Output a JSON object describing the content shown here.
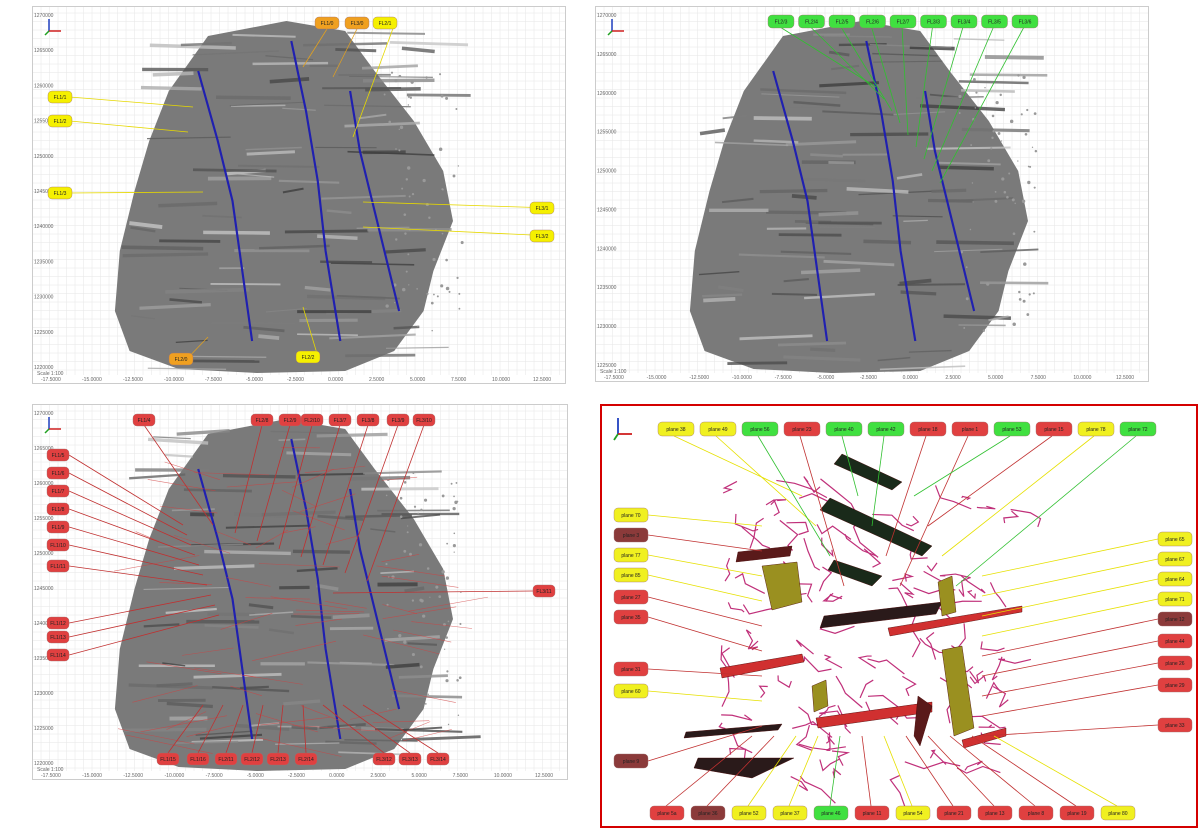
{
  "panels": [
    {
      "id": "p1",
      "y_ticks": [
        "1270000",
        "1265000",
        "1260000",
        "1255000",
        "1250000",
        "1245000",
        "1240000",
        "1235000",
        "1230000",
        "1225000",
        "1220000"
      ],
      "x_ticks": [
        "-17.5000",
        "-15.0000",
        "-12.5000",
        "-10.0000",
        "-7.5000",
        "-5.0000",
        "-2.5000",
        "0.0000",
        "2.5000",
        "5.0000",
        "7.5000",
        "10.0000",
        "12.5000"
      ],
      "scale_text": "Scale 1:100",
      "yellow_labels": [
        "FL1/1",
        "FL1/2",
        "FL1/3",
        "FL2/1",
        "FL3/1",
        "FL3/2",
        "FL2/2"
      ],
      "orange_labels": [
        "FL1/0",
        "FL2/0",
        "FL3/0"
      ]
    },
    {
      "id": "p2",
      "y_ticks": [
        "1270000",
        "1265000",
        "1260000",
        "1255000",
        "1250000",
        "1245000",
        "1240000",
        "1235000",
        "1230000",
        "1225000"
      ],
      "x_ticks": [
        "-17.5000",
        "-15.0000",
        "-12.5000",
        "-10.0000",
        "-7.5000",
        "-5.0000",
        "-2.5000",
        "0.0000",
        "2.5000",
        "5.0000",
        "7.5000",
        "10.0000",
        "12.5000"
      ],
      "scale_text": "Scale 1:100",
      "green_labels": [
        "FL2/3",
        "FL2/4",
        "FL2/5",
        "FL2/6",
        "FL2/7",
        "FL3/3",
        "FL3/4",
        "FL3/5",
        "FL3/6"
      ]
    },
    {
      "id": "p3",
      "y_ticks": [
        "1270000",
        "1265000",
        "1260000",
        "1255000",
        "1250000",
        "1245000",
        "1240000",
        "1235000",
        "1230000",
        "1225000",
        "1220000"
      ],
      "x_ticks": [
        "-17.5000",
        "-15.0000",
        "-12.5000",
        "-10.0000",
        "-7.5000",
        "-5.0000",
        "-2.5000",
        "0.0000",
        "2.5000",
        "5.0000",
        "7.5000",
        "10.0000",
        "12.5000"
      ],
      "scale_text": "Scale 1:100",
      "red_labels_top": [
        "FL1/4",
        "FL2/8",
        "FL2/9",
        "FL2/10",
        "FL3/7",
        "FL3/8",
        "FL3/9",
        "FL3/10"
      ],
      "red_labels_left": [
        "FL1/5",
        "FL1/6",
        "FL1/7",
        "FL1/8",
        "FL1/9",
        "FL1/10",
        "FL1/11",
        "FL1/12",
        "FL1/13",
        "FL1/14"
      ],
      "red_labels_right": [
        "FL3/11"
      ],
      "red_labels_bottom": [
        "FL1/15",
        "FL1/16",
        "FL2/11",
        "FL2/12",
        "FL2/13",
        "FL2/14",
        "FL3/12",
        "FL3/13",
        "FL3/14"
      ]
    },
    {
      "id": "p4",
      "top_labels": [
        {
          "t": "plane 38",
          "c": "#f0f020"
        },
        {
          "t": "plane 49",
          "c": "#f0f020"
        },
        {
          "t": "plane 56",
          "c": "#40e040"
        },
        {
          "t": "plane 23",
          "c": "#e04040"
        },
        {
          "t": "plane 40",
          "c": "#40e040"
        },
        {
          "t": "plane 42",
          "c": "#40e040"
        },
        {
          "t": "plane 18",
          "c": "#e04040"
        },
        {
          "t": "plane 1",
          "c": "#e04040"
        },
        {
          "t": "plane 53",
          "c": "#40e040"
        },
        {
          "t": "plane 15",
          "c": "#e04040"
        },
        {
          "t": "plane 78",
          "c": "#f0f020"
        },
        {
          "t": "plane 72",
          "c": "#40e040"
        }
      ],
      "left_labels": [
        {
          "t": "plane 70",
          "c": "#f0f020"
        },
        {
          "t": "plane 3",
          "c": "#8b3a3a"
        },
        {
          "t": "plane 77",
          "c": "#f0f020"
        },
        {
          "t": "plane 85",
          "c": "#f0f020"
        },
        {
          "t": "plane 27",
          "c": "#e04040"
        },
        {
          "t": "plane 35",
          "c": "#e04040"
        },
        {
          "t": "plane 31",
          "c": "#e04040"
        },
        {
          "t": "plane 60",
          "c": "#f0f020"
        },
        {
          "t": "plane 9",
          "c": "#8b3a3a"
        }
      ],
      "right_labels": [
        {
          "t": "plane 65",
          "c": "#f0f020"
        },
        {
          "t": "plane 67",
          "c": "#f0f020"
        },
        {
          "t": "plane 64",
          "c": "#f0f020"
        },
        {
          "t": "plane 71",
          "c": "#f0f020"
        },
        {
          "t": "plane 12",
          "c": "#8b3a3a"
        },
        {
          "t": "plane 44",
          "c": "#e04040"
        },
        {
          "t": "plane 26",
          "c": "#e04040"
        },
        {
          "t": "plane 29",
          "c": "#e04040"
        },
        {
          "t": "plane 33",
          "c": "#e04040"
        }
      ],
      "bottom_labels": [
        {
          "t": "plane 5a",
          "c": "#e04040"
        },
        {
          "t": "plane 36",
          "c": "#8b3a3a"
        },
        {
          "t": "plane 52",
          "c": "#f0f020"
        },
        {
          "t": "plane 37",
          "c": "#f0f020"
        },
        {
          "t": "plane 46",
          "c": "#40e040"
        },
        {
          "t": "plane 11",
          "c": "#e04040"
        },
        {
          "t": "plane 54",
          "c": "#f0f020"
        },
        {
          "t": "plane 21",
          "c": "#e04040"
        },
        {
          "t": "plane 13",
          "c": "#e04040"
        },
        {
          "t": "plane 8",
          "c": "#e04040"
        },
        {
          "t": "plane 19",
          "c": "#e04040"
        },
        {
          "t": "plane 80",
          "c": "#f0f020"
        }
      ]
    }
  ],
  "colors": {
    "yellow": "#f5f000",
    "orange": "#f0a020",
    "green": "#40e040",
    "red": "#e04040",
    "blue_line": "#2020b0"
  }
}
